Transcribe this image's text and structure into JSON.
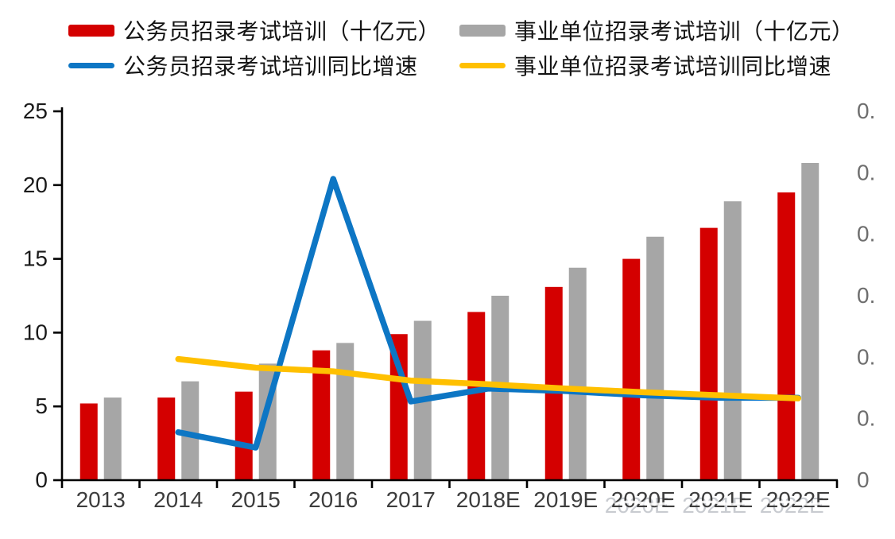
{
  "legend": {
    "items": [
      {
        "label": "公务员招录考试培训（十亿元）",
        "swatch": "bar",
        "color": "#d40000"
      },
      {
        "label": "事业单位招录考试培训（十亿元）",
        "swatch": "bar",
        "color": "#a6a6a6"
      },
      {
        "label": "公务员招录考试培训同比增速",
        "swatch": "line",
        "color": "#0d76c4"
      },
      {
        "label": "事业单位招录考试培训同比增速",
        "swatch": "line",
        "color": "#ffc000"
      }
    ]
  },
  "chart_data": {
    "type": "bar",
    "subtype": "combo-bar-line-dual-axis",
    "categories": [
      "2013",
      "2014",
      "2015",
      "2016",
      "2017",
      "2018E",
      "2019E",
      "2020E",
      "2021E",
      "2022E"
    ],
    "series": [
      {
        "name": "公务员招录考试培训（十亿元）",
        "kind": "bar",
        "axis": "left",
        "color": "#d40000",
        "values": [
          5.2,
          5.6,
          6.0,
          8.8,
          9.9,
          11.4,
          13.1,
          15.0,
          17.1,
          19.5
        ]
      },
      {
        "name": "事业单位招录考试培训（十亿元）",
        "kind": "bar",
        "axis": "left",
        "color": "#a6a6a6",
        "values": [
          5.6,
          6.7,
          7.9,
          9.3,
          10.8,
          12.5,
          14.4,
          16.5,
          18.9,
          21.5
        ]
      },
      {
        "name": "公务员招录考试培训同比增速",
        "kind": "line",
        "axis": "right",
        "color": "#0d76c4",
        "values": [
          null,
          0.078,
          0.053,
          0.49,
          0.128,
          0.149,
          0.145,
          0.138,
          0.134,
          0.134
        ]
      },
      {
        "name": "事业单位招录考试培训同比增速",
        "kind": "line",
        "axis": "right",
        "color": "#ffc000",
        "values": [
          null,
          0.197,
          0.183,
          0.177,
          0.162,
          0.156,
          0.149,
          0.143,
          0.138,
          0.133
        ]
      }
    ],
    "title": "",
    "xlabel": "",
    "ylabel": "",
    "left_axis": {
      "min": 0,
      "max": 25,
      "step": 5,
      "tick_labels": [
        "0",
        "5",
        "10",
        "15",
        "20",
        "25"
      ]
    },
    "right_axis": {
      "min": 0,
      "max": 0.6,
      "step": 0.1,
      "tick_labels_shown": [
        "0.",
        "0.",
        "0.",
        "0.",
        "0.",
        "0.",
        "0"
      ],
      "clipped_at_edge": true
    },
    "grid": false,
    "legend_position": "top",
    "x_axis": {
      "ghost_artifact_labels": [
        "2020E",
        "2021E",
        "2022E"
      ]
    }
  },
  "colors": {
    "bar_red": "#d40000",
    "bar_gray": "#a6a6a6",
    "line_blue": "#0d76c4",
    "line_yellow": "#ffc000",
    "axis": "#000000",
    "tick_label_left": "#1a1a1a",
    "tick_label_right": "#6e6e6e",
    "tick_label_x": "#3d3d3d",
    "ghost": "#c3c6cc"
  }
}
